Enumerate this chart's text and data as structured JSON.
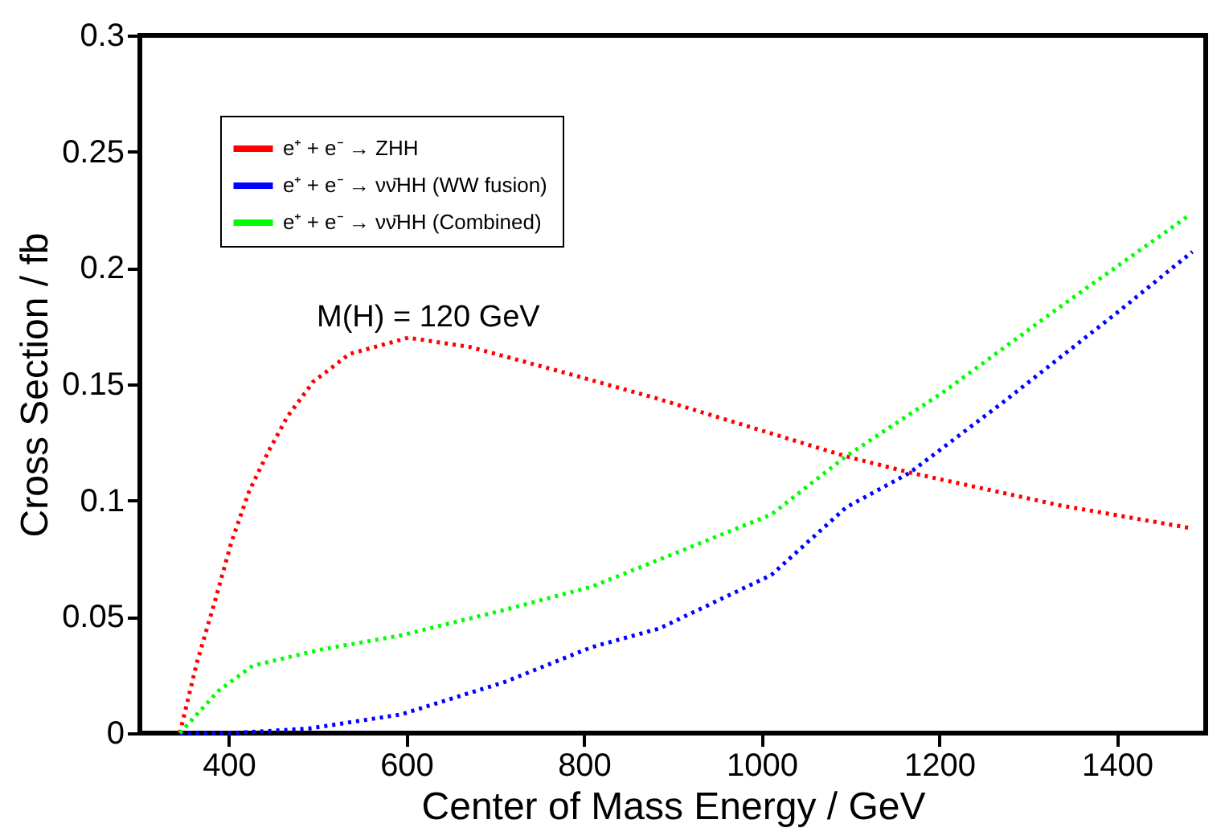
{
  "chart_data": {
    "type": "line",
    "xlabel": "Center of Mass Energy / GeV",
    "ylabel": "Cross Section / fb",
    "xlim": [
      300,
      1500
    ],
    "xticks": [
      400,
      600,
      800,
      1000,
      1200,
      1400
    ],
    "ylim": [
      0,
      0.3
    ],
    "yticks": [
      0,
      0.05,
      0.1,
      0.15,
      0.2,
      0.25,
      0.3
    ],
    "grid": false,
    "legend": "top left",
    "line_style": "dotted",
    "marker": "none",
    "annotations": [
      "M(H) = 120 GeV"
    ],
    "series": [
      {
        "name": "e⁺ + e⁻ → ZHH",
        "color": "#ff0000",
        "x": [
          345,
          364,
          384,
          403,
          423,
          446,
          466,
          495,
          536,
          602,
          672,
          778,
          881,
          1095,
          1167,
          1335,
          1485
        ],
        "values": [
          0.0,
          0.03,
          0.056,
          0.082,
          0.104,
          0.122,
          0.136,
          0.151,
          0.163,
          0.17,
          0.166,
          0.155,
          0.144,
          0.119,
          0.112,
          0.098,
          0.088
        ]
      },
      {
        "name": "e⁺ + e⁻ → νν̄HH  (WW fusion)",
        "color": "#0000ff",
        "x": [
          345,
          400,
          450,
          491,
          594,
          711,
          809,
          885,
          1011,
          1095,
          1167,
          1271,
          1401,
          1485
        ],
        "values": [
          0.0,
          0.0,
          0.001,
          0.002,
          0.008,
          0.022,
          0.037,
          0.045,
          0.068,
          0.097,
          0.112,
          0.142,
          0.181,
          0.207
        ]
      },
      {
        "name": "e⁺ + e⁻ → νν̄HH  (Combined)",
        "color": "#00ff00",
        "x": [
          345,
          388,
          427,
          505,
          594,
          711,
          809,
          881,
          1011,
          1095,
          1206,
          1335,
          1479
        ],
        "values": [
          0.0,
          0.018,
          0.029,
          0.036,
          0.042,
          0.053,
          0.063,
          0.074,
          0.094,
          0.119,
          0.147,
          0.183,
          0.222
        ]
      }
    ]
  }
}
